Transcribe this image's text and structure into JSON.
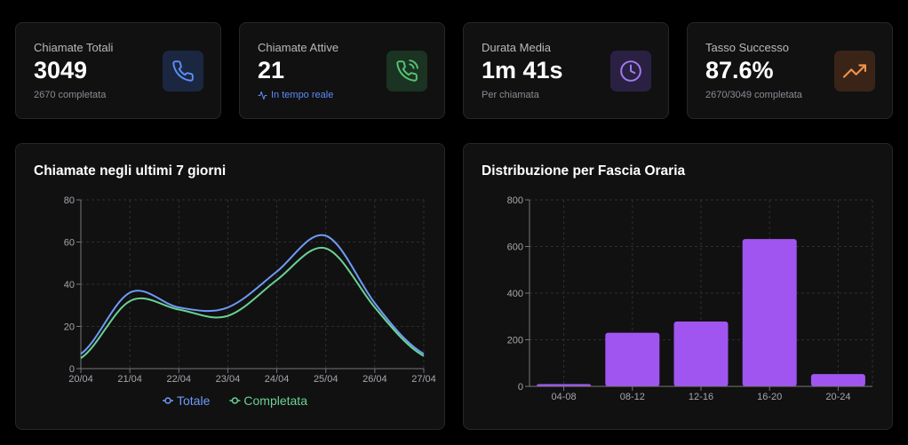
{
  "stats": [
    {
      "title": "Chiamate Totali",
      "value": "3049",
      "sub": "2670 completata",
      "icon": "phone-icon",
      "color": "#5b8df5",
      "bg": "#1b2740"
    },
    {
      "title": "Chiamate Attive",
      "value": "21",
      "sub": "In tempo reale",
      "icon": "phone-call-icon",
      "color": "#55c474",
      "bg": "#1b3322"
    },
    {
      "title": "Durata Media",
      "value": "1m 41s",
      "sub": "Per chiamata",
      "icon": "clock-icon",
      "color": "#a47bef",
      "bg": "#2a2142"
    },
    {
      "title": "Tasso Successo",
      "value": "87.6%",
      "sub": "2670/3049 completata",
      "icon": "trending-up-icon",
      "color": "#f0914a",
      "bg": "#3a2417"
    }
  ],
  "line_chart": {
    "title": "Chiamate negli ultimi 7 giorni"
  },
  "bar_chart": {
    "title": "Distribuzione per Fascia Oraria"
  },
  "chart_data": [
    {
      "type": "line",
      "title": "Chiamate negli ultimi 7 giorni",
      "x": [
        "20/04",
        "21/04",
        "22/04",
        "23/04",
        "24/04",
        "25/04",
        "26/04",
        "27/04"
      ],
      "series": [
        {
          "name": "Totale",
          "color": "#6f9bf6",
          "values": [
            7,
            36,
            29,
            29,
            46,
            63,
            31,
            7
          ]
        },
        {
          "name": "Completata",
          "color": "#6ad293",
          "values": [
            5,
            32,
            28,
            25,
            42,
            57,
            29,
            6
          ]
        }
      ],
      "yticks": [
        0,
        20,
        40,
        60,
        80
      ],
      "ylim": [
        0,
        80
      ],
      "grid": true,
      "legend": "bottom"
    },
    {
      "type": "bar",
      "title": "Distribuzione per Fascia Oraria",
      "categories": [
        "04-08",
        "08-12",
        "12-16",
        "16-20",
        "20-24"
      ],
      "values": [
        10,
        230,
        278,
        632,
        53
      ],
      "color": "#a155f0",
      "yticks": [
        0,
        200,
        400,
        600,
        800
      ],
      "ylim": [
        0,
        800
      ],
      "grid": true
    }
  ]
}
